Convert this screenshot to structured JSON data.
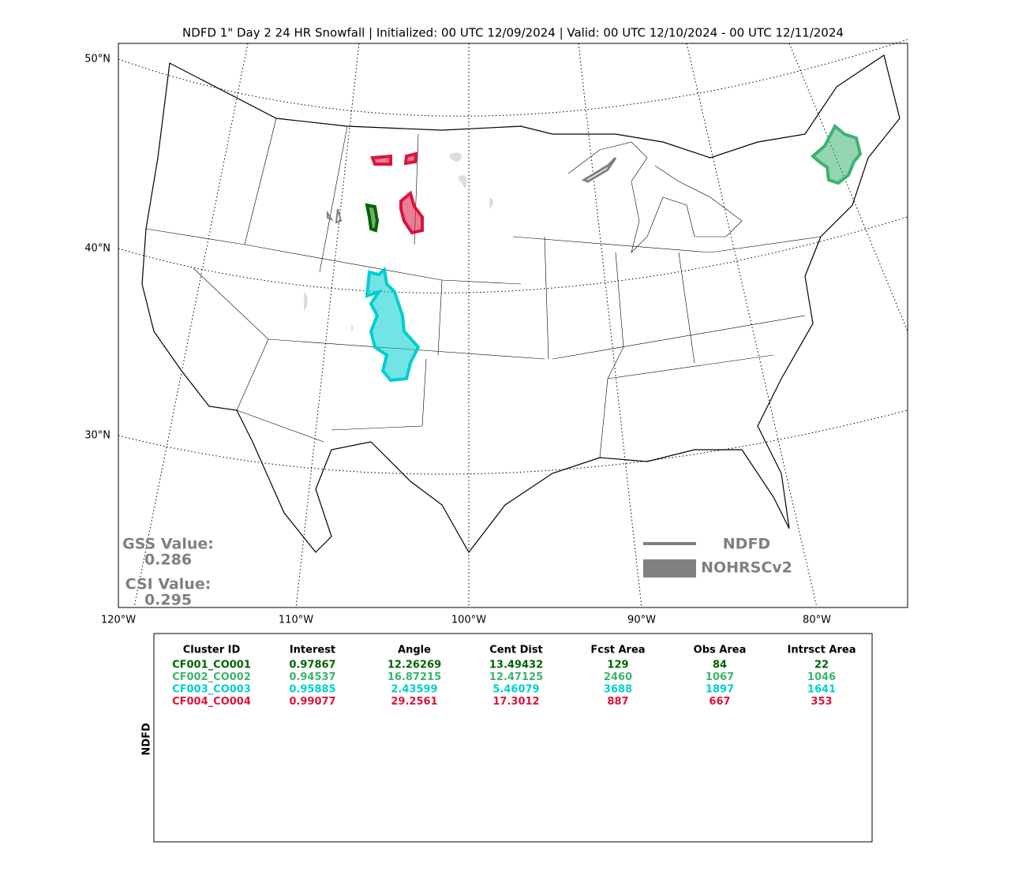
{
  "title": "NDFD 1\" Day 2 24 HR Snowfall | Initialized: 00 UTC 12/09/2024 | Valid: 00 UTC 12/10/2024 - 00 UTC 12/11/2024",
  "map": {
    "lat_labels": [
      "50°N",
      "40°N",
      "30°N"
    ],
    "lon_labels": [
      "120°W",
      "110°W",
      "100°W",
      "90°W",
      "80°W"
    ],
    "legend": [
      "NDFD",
      "NOHRSCv2"
    ],
    "scores": [
      {
        "label": "GSS Value:",
        "value": "0.286"
      },
      {
        "label": "CSI Value:",
        "value": "0.295"
      }
    ]
  },
  "table": {
    "side_label": "NDFD",
    "columns": [
      "Cluster ID",
      "Interest",
      "Angle",
      "Cent Dist",
      "Fcst Area",
      "Obs Area",
      "Intrsct Area"
    ],
    "rows": [
      [
        "CF001_CO001",
        "0.97867",
        "12.26269",
        "13.49432",
        "129",
        "84",
        "22"
      ],
      [
        "CF002_CO002",
        "0.94537",
        "16.87215",
        "12.47125",
        "2460",
        "1067",
        "1046"
      ],
      [
        "CF003_CO003",
        "0.95885",
        "2.43599",
        "5.46079",
        "3688",
        "1897",
        "1641"
      ],
      [
        "CF004_CO004",
        "0.99077",
        "29.2561",
        "17.3012",
        "887",
        "667",
        "353"
      ]
    ],
    "row_colors": [
      "#006400",
      "#3cb371",
      "#00ced1",
      "#dc143c"
    ]
  }
}
